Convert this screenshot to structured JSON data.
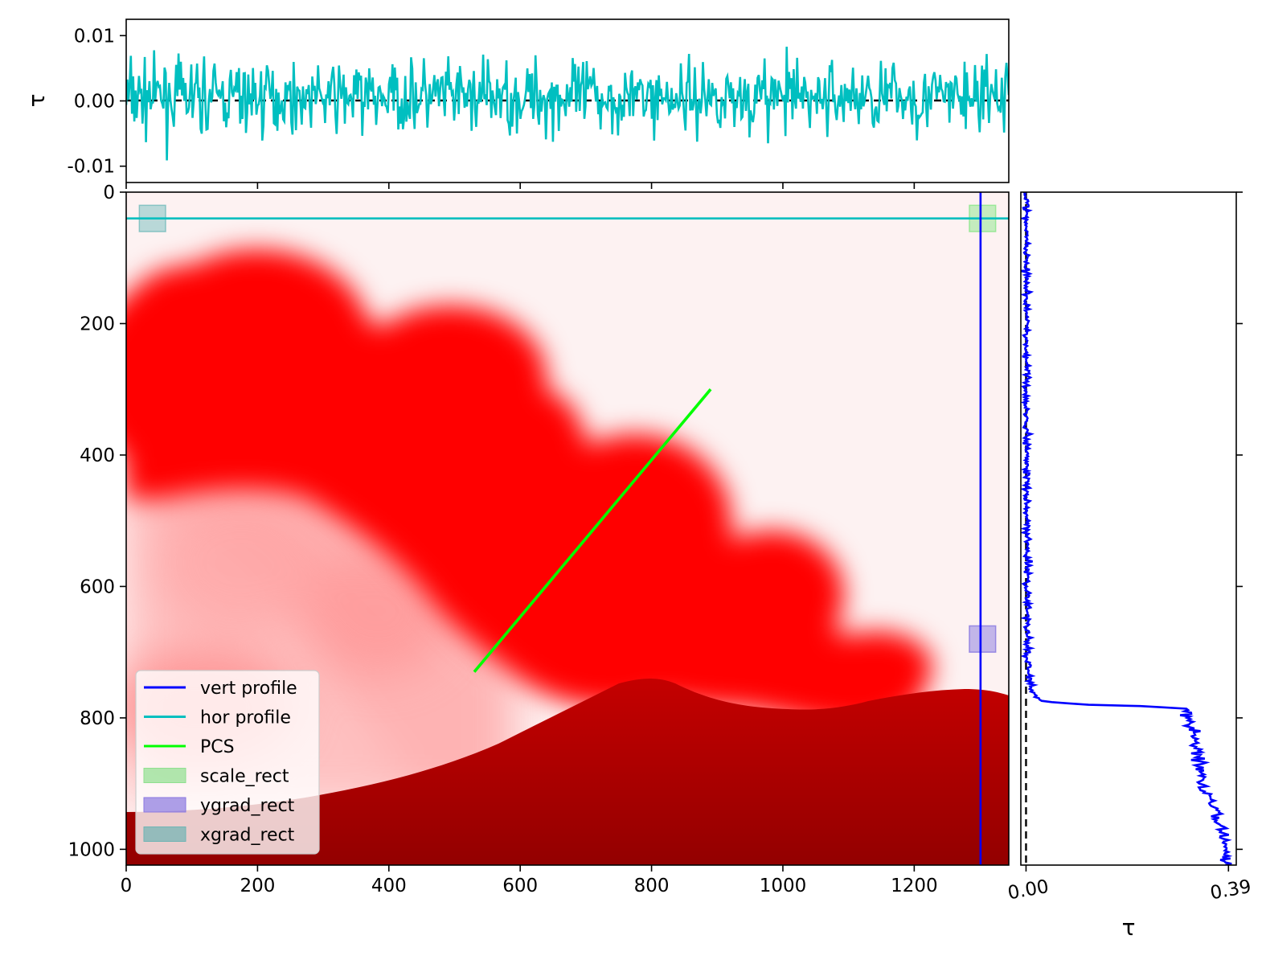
{
  "chart_data": [
    {
      "id": "hor-profile",
      "type": "line",
      "ylabel": "τ",
      "ylim": [
        -0.0125,
        0.0125
      ],
      "xlim": [
        0,
        1344
      ],
      "yticks": [
        0.01,
        0.0,
        -0.01
      ],
      "ytick_labels": [
        "0.01",
        "0.00",
        "-0.01"
      ],
      "xticks": [
        0,
        200,
        400,
        600,
        800,
        1000,
        1200
      ],
      "xtick_labels_shown": false,
      "zero_line": {
        "y": 0.0,
        "style": "dashed",
        "color": "#000000"
      },
      "series": [
        {
          "color": "#00bfc0",
          "note_points": 760,
          "amplitude": 0.0045,
          "seed": 7
        }
      ]
    },
    {
      "id": "main-image",
      "type": "heatmap",
      "xlim": [
        0,
        1344
      ],
      "ylim": [
        1024,
        0
      ],
      "xticks": [
        0,
        200,
        400,
        600,
        800,
        1000,
        1200
      ],
      "xtick_labels": [
        "0",
        "200",
        "400",
        "600",
        "800",
        "1000",
        "1200"
      ],
      "yticks": [
        0,
        200,
        400,
        600,
        800,
        1000
      ],
      "ytick_labels": [
        "0",
        "200",
        "400",
        "600",
        "800",
        "1000"
      ],
      "lines": [
        {
          "name": "vert profile",
          "kind": "vline",
          "x": 1301,
          "color": "#0000ff"
        },
        {
          "name": "hor profile",
          "kind": "hline",
          "y": 40,
          "color": "#00bfbf"
        },
        {
          "name": "PCS",
          "kind": "segment",
          "x1": 530,
          "y1": 730,
          "x2": 890,
          "y2": 300,
          "color": "#00ff00"
        }
      ],
      "rects": [
        {
          "name": "scale_rect",
          "x": 1284,
          "y": 20,
          "w": 40,
          "h": 40,
          "color": "#7fe57f"
        },
        {
          "name": "ygrad_rect",
          "x": 1284,
          "y": 660,
          "w": 40,
          "h": 40,
          "color": "#7b6bde"
        },
        {
          "name": "xgrad_rect",
          "x": 20,
          "y": 20,
          "w": 40,
          "h": 40,
          "color": "#67b7b7"
        }
      ],
      "legend": {
        "position": "lower-left",
        "entries": [
          {
            "label": "vert profile",
            "kind": "line",
            "color": "#0000ff"
          },
          {
            "label": "hor profile",
            "kind": "line",
            "color": "#00bfbf"
          },
          {
            "label": "PCS",
            "kind": "line",
            "color": "#00ff00"
          },
          {
            "label": "scale_rect",
            "kind": "patch",
            "color": "#8fe08f"
          },
          {
            "label": "ygrad_rect",
            "kind": "patch",
            "color": "#8a78e0"
          },
          {
            "label": "xgrad_rect",
            "kind": "patch",
            "color": "#6fb4b4"
          }
        ]
      },
      "colormap": [
        "#ffffff",
        "#ff0000",
        "#8b0000"
      ]
    },
    {
      "id": "vert-profile",
      "type": "line",
      "xlabel": "τ",
      "xlim": [
        -0.01,
        0.405
      ],
      "ylim": [
        1024,
        0
      ],
      "xticks": [
        0.0,
        0.39
      ],
      "xtick_labels": [
        "0.00",
        "0.39"
      ],
      "zero_line": {
        "x": 0.0,
        "style": "dashed",
        "color": "#000000"
      },
      "profile_points": [
        {
          "y": 0,
          "tau": 0.0
        },
        {
          "y": 700,
          "tau": 0.003
        },
        {
          "y": 760,
          "tau": 0.01
        },
        {
          "y": 775,
          "tau": 0.03
        },
        {
          "y": 780,
          "tau": 0.12
        },
        {
          "y": 782,
          "tau": 0.22
        },
        {
          "y": 786,
          "tau": 0.31
        },
        {
          "y": 800,
          "tau": 0.315
        },
        {
          "y": 850,
          "tau": 0.33
        },
        {
          "y": 900,
          "tau": 0.34
        },
        {
          "y": 950,
          "tau": 0.37
        },
        {
          "y": 1000,
          "tau": 0.385
        },
        {
          "y": 1024,
          "tau": 0.39
        }
      ],
      "series": [
        {
          "color": "#0000ff"
        }
      ]
    }
  ]
}
